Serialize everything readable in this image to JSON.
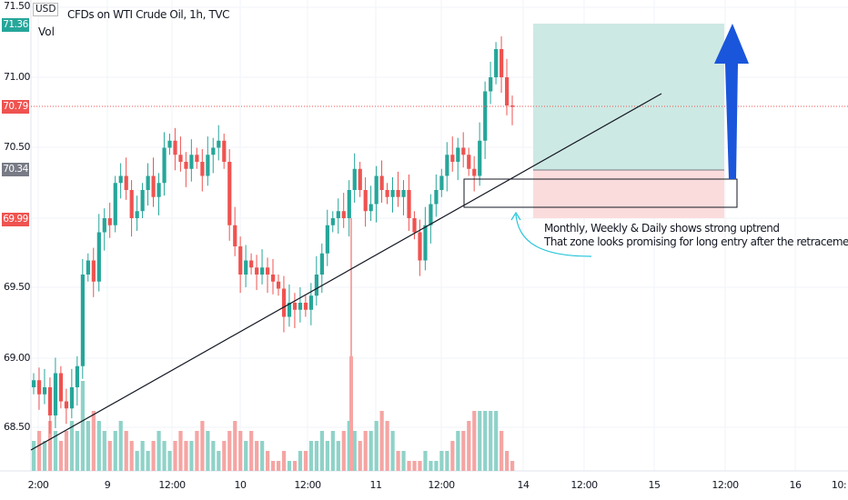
{
  "header": {
    "title": "CFDs on WTI Crude Oil, 1h, TVC",
    "indicator": "Vol",
    "currency": "USD"
  },
  "price_axis": {
    "ticks": [
      "71.50",
      "71.00",
      "70.50",
      "69.50",
      "69.00",
      "68.50"
    ],
    "badges": [
      {
        "label": "71.36",
        "color": "#26a69a"
      },
      {
        "label": "70.79",
        "color": "#ef5350"
      },
      {
        "label": "70.34",
        "color": "#787b86"
      },
      {
        "label": "69.99",
        "color": "#ef5350"
      }
    ]
  },
  "time_axis": {
    "ticks": [
      "2:00",
      "9",
      "12:00",
      "10",
      "12:00",
      "11",
      "12:00",
      "14",
      "12:00",
      "15",
      "12:00",
      "16",
      "10:"
    ]
  },
  "annotation": {
    "line1": "Monthly, Weekly & Daily shows strong uptrend",
    "line2": "That zone looks promising for long entry after the retracement."
  },
  "colors": {
    "up": "#26a69a",
    "down": "#ef5350",
    "up_vol": "#8fd2c8",
    "down_vol": "#f5a5a3",
    "arrow": "#1a56db",
    "profit": "#cde9e4",
    "loss": "#fbdcdc"
  },
  "chart_data": {
    "type": "candlestick",
    "last_price": 70.79,
    "closes": [
      68.85,
      68.75,
      68.8,
      68.6,
      68.9,
      68.7,
      68.65,
      68.8,
      68.95,
      69.6,
      69.7,
      69.55,
      69.9,
      70.0,
      69.95,
      70.25,
      70.3,
      70.2,
      70.0,
      70.05,
      70.2,
      70.3,
      70.15,
      70.25,
      70.5,
      70.55,
      70.45,
      70.4,
      70.35,
      70.45,
      70.4,
      70.3,
      70.45,
      70.5,
      70.55,
      70.4,
      69.95,
      69.8,
      69.6,
      69.7,
      69.65,
      69.6,
      69.65,
      69.6,
      69.55,
      69.5,
      69.3,
      69.4,
      69.35,
      69.4,
      69.35,
      69.45,
      69.6,
      69.75,
      69.95,
      70.0,
      70.05,
      70.0,
      70.2,
      70.35,
      70.2,
      70.05,
      70.1,
      70.3,
      70.2,
      70.15,
      70.2,
      70.15,
      70.2,
      70.0,
      69.9,
      69.7,
      69.95,
      70.1,
      70.2,
      70.3,
      70.45,
      70.4,
      70.5,
      70.45,
      70.35,
      70.3,
      70.55,
      70.9,
      71.0,
      71.2,
      71.0,
      70.8,
      70.79
    ],
    "volumes": [
      3,
      4,
      3,
      5,
      4,
      3,
      4,
      5,
      4,
      9,
      5,
      6,
      5,
      4,
      3,
      4,
      5,
      4,
      3,
      2,
      3,
      2,
      3,
      4,
      3,
      2,
      3,
      4,
      3,
      3,
      4,
      5,
      4,
      3,
      2,
      3,
      4,
      5,
      4,
      3,
      4,
      3,
      3,
      2,
      1,
      1,
      2,
      1,
      1,
      2,
      2,
      3,
      3,
      4,
      3,
      4,
      3,
      4,
      5,
      4,
      3,
      4,
      4,
      5,
      6,
      5,
      4,
      2,
      2,
      1,
      1,
      1,
      2,
      1,
      1,
      2,
      2,
      3,
      4,
      4,
      5,
      6,
      6,
      6,
      6,
      6,
      4,
      2,
      1
    ]
  }
}
